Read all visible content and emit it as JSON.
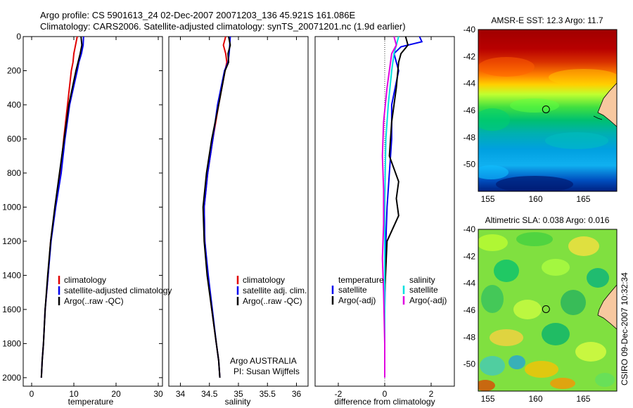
{
  "header": {
    "line1": "Argo profile: CS 5901613_24 02-Dec-2007 20071203_136 45.921S 161.086E",
    "line2": "Climatology: CARS2006. Satellite-adjusted climatology: synTS_20071201.nc (1.9d earlier)"
  },
  "side_label": "CSIRO 09-Dec-2007 10:32:34",
  "colors": {
    "climatology": "#e00000",
    "satellite": "#0000ee",
    "argo": "#000000",
    "sat_salinity": "#00e0e0",
    "argo_salinity": "#e000e0",
    "land": "#f7c8a0"
  },
  "chart_data": [
    {
      "type": "line",
      "id": "temperature",
      "xlabel": "temperature",
      "ylabel": "",
      "xlim": [
        -2,
        31
      ],
      "ylim": [
        2050,
        0
      ],
      "xticks": [
        0,
        10,
        20,
        30
      ],
      "yticks": [
        0,
        200,
        400,
        600,
        800,
        1000,
        1200,
        1400,
        1600,
        1800,
        2000
      ],
      "legend": [
        "climatology",
        "satellite-adjusted climatology",
        "Argo(..raw -QC)"
      ],
      "series": [
        {
          "name": "climatology",
          "color": "#e00000",
          "x": [
            10.8,
            10.4,
            10.0,
            9.8,
            9.4,
            8.5,
            7.6,
            6.8,
            5.6,
            4.5,
            3.9,
            3.2,
            2.8,
            2.5,
            2.3
          ],
          "y": [
            0,
            50,
            100,
            150,
            200,
            400,
            600,
            800,
            1000,
            1200,
            1400,
            1600,
            1800,
            1900,
            2000
          ]
        },
        {
          "name": "satellite-adjusted climatology",
          "color": "#0000ee",
          "x": [
            12.3,
            12.2,
            11.8,
            11.2,
            10.8,
            9.0,
            7.9,
            7.0,
            5.7,
            4.6,
            3.9,
            3.2,
            2.8,
            2.5,
            2.3
          ],
          "y": [
            0,
            50,
            100,
            150,
            200,
            400,
            600,
            800,
            1000,
            1200,
            1400,
            1600,
            1800,
            1900,
            2000
          ]
        },
        {
          "name": "Argo(..raw -QC)",
          "color": "#000000",
          "x": [
            11.7,
            11.9,
            11.5,
            11.0,
            10.5,
            8.8,
            7.7,
            6.6,
            5.5,
            4.5,
            3.8,
            3.2,
            2.8,
            2.5,
            2.3
          ],
          "y": [
            0,
            50,
            100,
            150,
            200,
            400,
            600,
            800,
            1000,
            1200,
            1400,
            1600,
            1800,
            1900,
            2000
          ]
        }
      ]
    },
    {
      "type": "line",
      "id": "salinity",
      "xlabel": "salinity",
      "xlim": [
        33.8,
        36.2
      ],
      "ylim": [
        2050,
        0
      ],
      "xticks": [
        34,
        34.5,
        35,
        35.5,
        36
      ],
      "xticklabels": [
        "34",
        "34.5",
        "35",
        "35.5",
        "36"
      ],
      "legend": [
        "climatology",
        "satellite adj. clim.",
        "Argo(..raw -QC)"
      ],
      "annotation": [
        "Argo AUSTRALIA",
        "PI: Susan Wijffels"
      ],
      "series": [
        {
          "name": "climatology",
          "color": "#e00000",
          "x": [
            34.78,
            34.74,
            34.78,
            34.8,
            34.77,
            34.66,
            34.56,
            34.47,
            34.41,
            34.42,
            34.47,
            34.54,
            34.62,
            34.66,
            34.68
          ],
          "y": [
            0,
            50,
            100,
            150,
            200,
            400,
            600,
            800,
            1000,
            1200,
            1400,
            1600,
            1800,
            1900,
            2000
          ]
        },
        {
          "name": "satellite adj. clim.",
          "color": "#0000ee",
          "x": [
            34.86,
            34.85,
            34.84,
            34.82,
            34.76,
            34.64,
            34.56,
            34.47,
            34.41,
            34.42,
            34.48,
            34.55,
            34.62,
            34.66,
            34.68
          ],
          "y": [
            0,
            50,
            100,
            150,
            200,
            400,
            600,
            800,
            1000,
            1200,
            1400,
            1600,
            1800,
            1900,
            2000
          ]
        },
        {
          "name": "Argo(..raw -QC)",
          "color": "#000000",
          "x": [
            34.83,
            34.86,
            34.82,
            34.83,
            34.77,
            34.66,
            34.54,
            34.45,
            34.39,
            34.41,
            34.46,
            34.54,
            34.62,
            34.66,
            34.68
          ],
          "y": [
            0,
            50,
            100,
            150,
            200,
            400,
            600,
            800,
            1000,
            1200,
            1400,
            1600,
            1800,
            1900,
            2000
          ]
        }
      ]
    },
    {
      "type": "line",
      "id": "difference",
      "xlabel": "difference from climatology",
      "xlim": [
        -3,
        3
      ],
      "ylim": [
        2050,
        0
      ],
      "xticks": [
        -2,
        0,
        2
      ],
      "legend_groups": [
        {
          "title": "temperature",
          "items": [
            "satellite",
            "Argo(-adj)"
          ]
        },
        {
          "title": "salinity",
          "items": [
            "satellite",
            "Argo(-adj)"
          ]
        }
      ],
      "series": [
        {
          "name": "temperature satellite",
          "color": "#0000ee",
          "x": [
            1.5,
            1.6,
            0.7,
            0.4,
            0.6,
            0.3,
            0.3,
            0.2,
            0.1,
            0.05,
            0.02,
            0.0,
            0.0,
            0.0
          ],
          "y": [
            0,
            30,
            60,
            100,
            200,
            400,
            600,
            800,
            1000,
            1200,
            1400,
            1600,
            1800,
            2000
          ]
        },
        {
          "name": "temperature Argo(-adj)",
          "color": "#000000",
          "x": [
            0.9,
            1.0,
            0.7,
            0.6,
            0.5,
            0.3,
            0.2,
            0.6,
            0.5,
            0.6,
            0.1,
            0.0,
            0.0,
            0.0
          ],
          "y": [
            0,
            50,
            100,
            150,
            300,
            500,
            700,
            850,
            950,
            1050,
            1200,
            1500,
            1800,
            2000
          ]
        },
        {
          "name": "salinity satellite",
          "color": "#00e0e0",
          "x": [
            0.6,
            0.5,
            0.4,
            0.3,
            0.15,
            0.05,
            0.02,
            0.0,
            0.0,
            0.0,
            0.0
          ],
          "y": [
            0,
            50,
            100,
            200,
            400,
            600,
            800,
            1000,
            1400,
            1800,
            2000
          ]
        },
        {
          "name": "salinity Argo(-adj)",
          "color": "#e000e0",
          "x": [
            0.4,
            0.5,
            0.3,
            0.1,
            -0.05,
            -0.1,
            -0.05,
            -0.05,
            -0.1,
            -0.05,
            0.0,
            0.0
          ],
          "y": [
            0,
            50,
            100,
            300,
            500,
            700,
            900,
            1100,
            1300,
            1500,
            1800,
            2000
          ]
        }
      ]
    },
    {
      "type": "heatmap",
      "id": "amsre-sst",
      "title": "AMSR-E SST: 12.3 Argo: 11.7",
      "xlim": [
        154,
        168.5
      ],
      "ylim": [
        -52,
        -40
      ],
      "xticks": [
        155,
        160,
        165
      ],
      "yticks": [
        -40,
        -42,
        -44,
        -46,
        -48,
        -50
      ],
      "argo_position": {
        "lon": 161.086,
        "lat": -45.921
      }
    },
    {
      "type": "heatmap",
      "id": "altimetric-sla",
      "title": "Altimetric SLA: 0.038 Argo: 0.016",
      "xlim": [
        154,
        168.5
      ],
      "ylim": [
        -52,
        -40
      ],
      "xticks": [
        155,
        160,
        165
      ],
      "yticks": [
        -40,
        -42,
        -44,
        -46,
        -48,
        -50
      ],
      "argo_position": {
        "lon": 161.086,
        "lat": -45.921
      }
    }
  ]
}
